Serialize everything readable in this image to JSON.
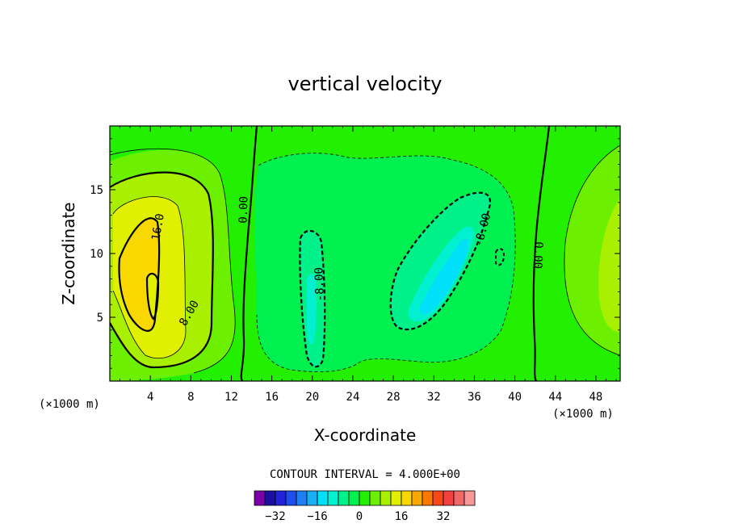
{
  "chart_data": {
    "type": "heatmap",
    "title": "vertical velocity",
    "xlabel": "X-coordinate",
    "ylabel": "Z-coordinate",
    "x_unit": "(×1000 m)",
    "x_unit_right": "(×1000 m)",
    "xlim": [
      0,
      50.4
    ],
    "ylim": [
      0,
      20
    ],
    "x_ticks": [
      "4",
      "8",
      "12",
      "16",
      "20",
      "24",
      "28",
      "32",
      "36",
      "40",
      "44",
      "48"
    ],
    "y_ticks": [
      "5",
      "10",
      "15"
    ],
    "contour_labels": [
      "16.0",
      "8.00",
      "0.00",
      "-8.00",
      "-8.00",
      "0.00"
    ],
    "contour_interval_text": "CONTOUR INTERVAL = 4.000E+00",
    "colorbar": {
      "tick_labels": [
        "−32",
        "−16",
        "0",
        "16",
        "32"
      ],
      "colors": [
        "#7a00a8",
        "#1a0fa0",
        "#2222d8",
        "#1f4ef0",
        "#1f7ff2",
        "#18b0f4",
        "#00e0f8",
        "#00f0d0",
        "#00f08a",
        "#00f050",
        "#22f000",
        "#6cf000",
        "#a8f000",
        "#e0f000",
        "#f8d800",
        "#f8a800",
        "#f87800",
        "#f84818",
        "#f04040",
        "#f06868",
        "#f89898"
      ]
    },
    "grid": false
  }
}
